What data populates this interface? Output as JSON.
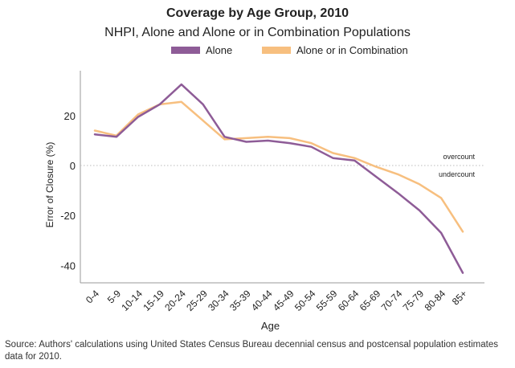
{
  "title": "Coverage by Age Group, 2010",
  "subtitle": "NHPI, Alone and Alone or in Combination Populations",
  "source": "Source: Authors' calculations using United States Census Bureau decennial census and postcensal population estimates data for 2010.",
  "chart_data": {
    "type": "line",
    "title": "Coverage by Age Group, 2010",
    "subtitle": "NHPI, Alone and Alone or in Combination Populations",
    "xlabel": "Age",
    "ylabel": "Error of Closure (%)",
    "categories": [
      "0-4",
      "5-9",
      "10-14",
      "15-19",
      "20-24",
      "25-29",
      "30-34",
      "35-39",
      "40-44",
      "45-49",
      "50-54",
      "55-59",
      "60-64",
      "65-69",
      "70-74",
      "75-79",
      "80-84",
      "85+"
    ],
    "ylim": [
      -47,
      38
    ],
    "yticks": [
      20,
      0,
      -20,
      -40
    ],
    "ytick_labels": [
      "20",
      "0",
      "-20",
      "-40"
    ],
    "grid": false,
    "legend_position": "top",
    "reference_line": {
      "y": 0,
      "style": "dotted",
      "label_above": "overcount",
      "label_below": "undercount"
    },
    "series": [
      {
        "name": "Alone",
        "color": "#8e5c97",
        "values": [
          12.5,
          11.5,
          19.5,
          24.5,
          32.5,
          24.5,
          11.5,
          9.5,
          10.0,
          9.0,
          7.5,
          3.0,
          2.0,
          -4.5,
          -11.0,
          -18.0,
          -27.0,
          -43.0
        ]
      },
      {
        "name": "Alone or in Combination",
        "color": "#f7bf7f",
        "values": [
          14.0,
          12.0,
          20.5,
          24.5,
          25.5,
          18.0,
          10.5,
          11.0,
          11.5,
          11.0,
          9.0,
          5.0,
          3.0,
          -0.5,
          -3.5,
          -7.5,
          -13.0,
          -26.5
        ]
      }
    ]
  }
}
